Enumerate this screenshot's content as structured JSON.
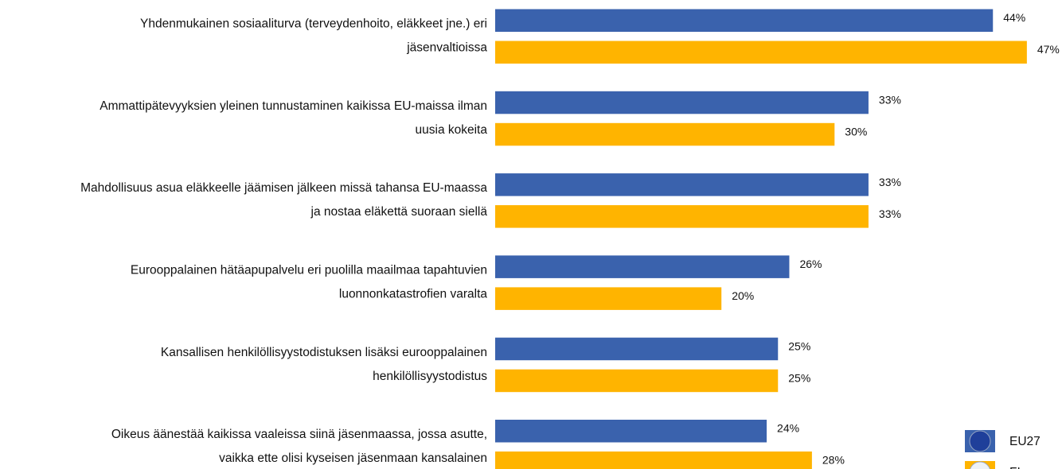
{
  "chart_data": {
    "type": "bar",
    "orientation": "horizontal",
    "categories": [
      [
        "Yhdenmukainen sosiaaliturva (terveydenhoito, eläkkeet jne.) eri",
        "jäsenvaltioissa"
      ],
      [
        "Ammattipätevyyksien yleinen tunnustaminen kaikissa EU-maissa ilman",
        "uusia kokeita"
      ],
      [
        "Mahdollisuus asua eläkkeelle jäämisen jälkeen missä tahansa EU-maassa",
        "ja nostaa eläkettä suoraan siellä"
      ],
      [
        "Eurooppalainen hätäapupalvelu eri puolilla maailmaa tapahtuvien",
        "luonnonkatastrofien varalta"
      ],
      [
        "Kansallisen henkilöllisyystodistuksen lisäksi eurooppalainen",
        "henkilöllisyystodistus"
      ],
      [
        "Oikeus äänestää kaikissa vaaleissa siinä jäsenmaassa, jossa asutte,",
        "vaikka ette olisi kyseisen jäsenmaan kansalainen"
      ]
    ],
    "series": [
      {
        "name": "EU27",
        "color": "#3a62ad",
        "values": [
          44,
          33,
          33,
          26,
          25,
          24
        ],
        "value_labels": [
          "44%",
          "33%",
          "33%",
          "26%",
          "25%",
          "24%"
        ]
      },
      {
        "name": "FI",
        "color": "#ffb400",
        "values": [
          47,
          30,
          33,
          20,
          25,
          28
        ],
        "value_labels": [
          "47%",
          "30%",
          "33%",
          "20%",
          "25%",
          "28%"
        ]
      }
    ],
    "legend": "bottom-right"
  }
}
